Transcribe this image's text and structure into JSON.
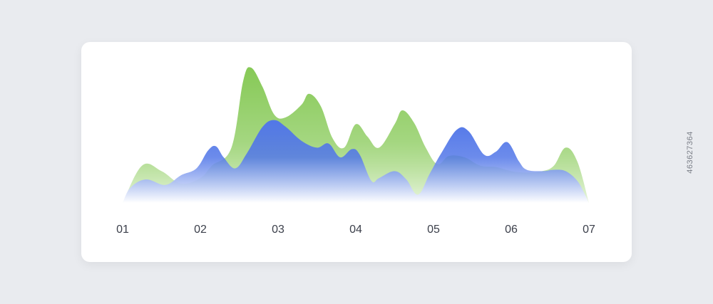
{
  "chart_data": {
    "type": "area",
    "title": "",
    "xlabel": "",
    "ylabel": "",
    "x_categories": [
      "01",
      "02",
      "03",
      "04",
      "05",
      "06",
      "07"
    ],
    "xlim": [
      1,
      7
    ],
    "ylim": [
      0,
      100
    ],
    "grid": false,
    "legend": "none",
    "series": [
      {
        "color_top": "#86c956",
        "color_bottom": "#eaf6df",
        "points": [
          [
            1.0,
            0
          ],
          [
            1.25,
            27
          ],
          [
            1.5,
            23
          ],
          [
            1.75,
            14
          ],
          [
            2.0,
            18
          ],
          [
            2.15,
            27
          ],
          [
            2.4,
            40
          ],
          [
            2.55,
            88
          ],
          [
            2.65,
            98
          ],
          [
            2.8,
            84
          ],
          [
            2.95,
            64
          ],
          [
            3.1,
            62
          ],
          [
            3.3,
            71
          ],
          [
            3.4,
            79
          ],
          [
            3.55,
            70
          ],
          [
            3.7,
            47
          ],
          [
            3.85,
            40
          ],
          [
            4.0,
            57
          ],
          [
            4.15,
            48
          ],
          [
            4.3,
            40
          ],
          [
            4.5,
            57
          ],
          [
            4.6,
            67
          ],
          [
            4.75,
            58
          ],
          [
            4.9,
            40
          ],
          [
            5.05,
            28
          ],
          [
            5.2,
            34
          ],
          [
            5.4,
            33
          ],
          [
            5.6,
            27
          ],
          [
            5.8,
            26
          ],
          [
            6.0,
            23
          ],
          [
            6.2,
            22
          ],
          [
            6.4,
            23
          ],
          [
            6.55,
            27
          ],
          [
            6.7,
            40
          ],
          [
            6.85,
            30
          ],
          [
            7.0,
            0
          ]
        ]
      },
      {
        "color_top": "#5277e8",
        "color_bottom": "#ffffff",
        "points": [
          [
            1.0,
            0
          ],
          [
            1.1,
            11
          ],
          [
            1.3,
            17
          ],
          [
            1.55,
            13
          ],
          [
            1.75,
            20
          ],
          [
            1.95,
            25
          ],
          [
            2.1,
            38
          ],
          [
            2.2,
            41
          ],
          [
            2.3,
            33
          ],
          [
            2.45,
            25
          ],
          [
            2.6,
            36
          ],
          [
            2.8,
            55
          ],
          [
            2.95,
            60
          ],
          [
            3.1,
            55
          ],
          [
            3.3,
            45
          ],
          [
            3.5,
            40
          ],
          [
            3.65,
            43
          ],
          [
            3.8,
            33
          ],
          [
            3.95,
            39
          ],
          [
            4.05,
            35
          ],
          [
            4.2,
            16
          ],
          [
            4.3,
            18
          ],
          [
            4.5,
            23
          ],
          [
            4.65,
            17
          ],
          [
            4.8,
            6
          ],
          [
            4.95,
            21
          ],
          [
            5.1,
            36
          ],
          [
            5.3,
            53
          ],
          [
            5.45,
            52
          ],
          [
            5.65,
            35
          ],
          [
            5.8,
            37
          ],
          [
            5.95,
            44
          ],
          [
            6.1,
            30
          ],
          [
            6.2,
            24
          ],
          [
            6.4,
            23
          ],
          [
            6.55,
            24
          ],
          [
            6.7,
            23
          ],
          [
            6.85,
            16
          ],
          [
            6.95,
            6
          ],
          [
            7.0,
            0
          ]
        ]
      }
    ]
  },
  "side_code": "463627364"
}
